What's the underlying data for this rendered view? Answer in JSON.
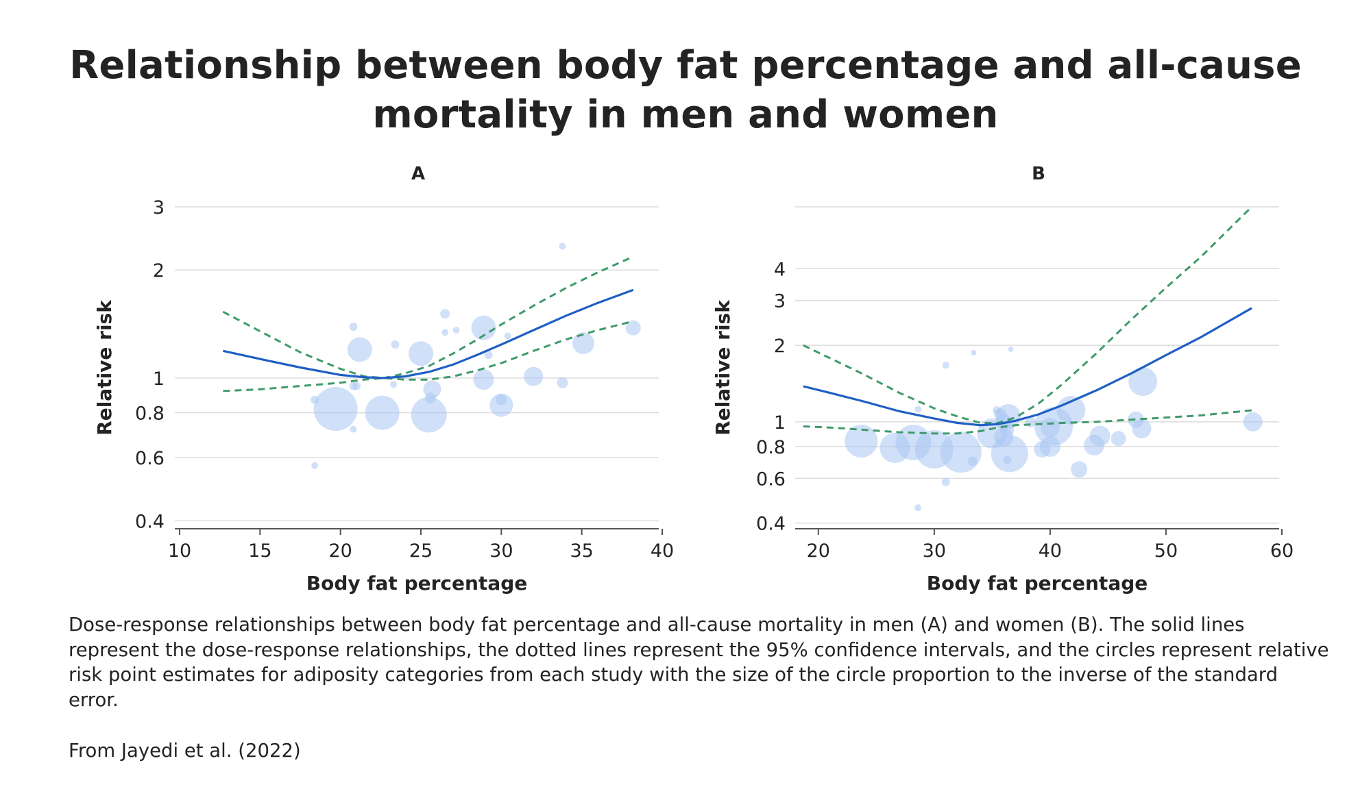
{
  "title": "Relationship between body fat percentage and all-cause mortality in men and women",
  "caption": "Dose-response relationships between body fat percentage and all-cause mortality in men (A) and women (B). The solid lines represent the dose-response relationships, the dotted lines represent the 95% confidence intervals, and the circles represent relative risk point estimates for adiposity categories from each study with the size of the circle proportion to the inverse of the standard error.",
  "source": "From Jayedi et al. (2022)",
  "colors": {
    "curve": "#1f5fc4",
    "ci": "#3f9a6a",
    "bubble": "#a9c6f2",
    "grid": "#dcdcdc",
    "axis": "#555555"
  },
  "chart_data": [
    {
      "type": "scatter",
      "panel_label": "A",
      "xlabel": "Body fat percentage",
      "ylabel": "Relative risk",
      "y_scale": "log",
      "xlim": [
        10,
        40
      ],
      "ylim": [
        0.38,
        3.0
      ],
      "x_ticks": [
        10,
        15,
        20,
        25,
        30,
        35,
        40
      ],
      "y_ticks": [
        0.4,
        0.6,
        0.8,
        1,
        2,
        3
      ],
      "y_tick_labels": [
        "0.4",
        "0.6",
        "0.8",
        "1",
        "2",
        "3"
      ],
      "curve": {
        "x": [
          12.7,
          15,
          17.5,
          20,
          21.5,
          22.7,
          24,
          25.5,
          27,
          28.5,
          30,
          32,
          34,
          36,
          38.2
        ],
        "y": [
          1.19,
          1.13,
          1.07,
          1.02,
          1.005,
          1.0,
          1.01,
          1.04,
          1.09,
          1.16,
          1.24,
          1.36,
          1.49,
          1.62,
          1.76
        ]
      },
      "ci_upper": {
        "x": [
          12.7,
          15,
          17.5,
          20,
          21.5,
          22.7,
          24,
          25.5,
          27,
          28.5,
          30,
          32,
          34,
          36,
          38.2
        ],
        "y": [
          1.53,
          1.35,
          1.18,
          1.06,
          1.01,
          1.0,
          1.03,
          1.08,
          1.17,
          1.28,
          1.41,
          1.59,
          1.78,
          1.97,
          2.18
        ]
      },
      "ci_lower": {
        "x": [
          12.7,
          15,
          17.5,
          20,
          21.5,
          22.7,
          24,
          25.5,
          27,
          28.5,
          30,
          32,
          34,
          36,
          38.2
        ],
        "y": [
          0.92,
          0.93,
          0.95,
          0.97,
          0.99,
          1.0,
          0.99,
          0.99,
          1.01,
          1.05,
          1.1,
          1.19,
          1.28,
          1.36,
          1.44
        ]
      },
      "points": [
        {
          "x": 18.4,
          "y": 0.57,
          "r": 5
        },
        {
          "x": 18.4,
          "y": 0.87,
          "r": 6
        },
        {
          "x": 19.7,
          "y": 0.82,
          "r": 32
        },
        {
          "x": 20.8,
          "y": 0.95,
          "r": 6
        },
        {
          "x": 21.0,
          "y": 0.95,
          "r": 6
        },
        {
          "x": 20.8,
          "y": 0.72,
          "r": 5
        },
        {
          "x": 20.8,
          "y": 1.39,
          "r": 6
        },
        {
          "x": 21.2,
          "y": 1.2,
          "r": 18
        },
        {
          "x": 22.6,
          "y": 0.8,
          "r": 25
        },
        {
          "x": 23.3,
          "y": 0.96,
          "r": 5
        },
        {
          "x": 23.4,
          "y": 1.24,
          "r": 6
        },
        {
          "x": 25.0,
          "y": 1.17,
          "r": 18
        },
        {
          "x": 25.5,
          "y": 0.79,
          "r": 26
        },
        {
          "x": 25.7,
          "y": 0.93,
          "r": 13
        },
        {
          "x": 25.6,
          "y": 0.88,
          "r": 8
        },
        {
          "x": 26.5,
          "y": 1.51,
          "r": 7
        },
        {
          "x": 26.5,
          "y": 1.34,
          "r": 5
        },
        {
          "x": 27.2,
          "y": 1.36,
          "r": 5
        },
        {
          "x": 28.9,
          "y": 1.38,
          "r": 18
        },
        {
          "x": 28.9,
          "y": 0.99,
          "r": 15
        },
        {
          "x": 29.2,
          "y": 1.16,
          "r": 6
        },
        {
          "x": 30.0,
          "y": 0.84,
          "r": 17
        },
        {
          "x": 30.0,
          "y": 0.87,
          "r": 8
        },
        {
          "x": 30.4,
          "y": 1.31,
          "r": 5
        },
        {
          "x": 32.0,
          "y": 1.01,
          "r": 14
        },
        {
          "x": 33.8,
          "y": 0.97,
          "r": 8
        },
        {
          "x": 33.8,
          "y": 2.33,
          "r": 5
        },
        {
          "x": 35.1,
          "y": 1.25,
          "r": 16
        },
        {
          "x": 38.2,
          "y": 1.38,
          "r": 11
        }
      ]
    },
    {
      "type": "scatter",
      "panel_label": "B",
      "xlabel": "Body fat percentage",
      "ylabel": "Relative risk",
      "y_scale": "log",
      "xlim": [
        18,
        60
      ],
      "ylim": [
        0.38,
        7.0
      ],
      "x_ticks": [
        20,
        30,
        40,
        50,
        60
      ],
      "y_ticks": [
        0.4,
        0.6,
        0.8,
        1,
        2,
        3,
        4
      ],
      "y_tick_labels": [
        "0.4",
        "0.6",
        "0.8",
        "1",
        "2",
        "3",
        "4"
      ],
      "extra_gridlines": [
        7.0
      ],
      "curve": {
        "x": [
          18.7,
          21,
          24,
          27,
          30,
          32,
          34,
          35.5,
          37,
          39,
          41,
          44,
          47,
          50,
          53,
          57.4
        ],
        "y": [
          1.38,
          1.3,
          1.2,
          1.1,
          1.03,
          0.99,
          0.97,
          0.98,
          1.01,
          1.07,
          1.16,
          1.33,
          1.55,
          1.83,
          2.15,
          2.8
        ]
      },
      "ci_upper": {
        "x": [
          18.7,
          21,
          24,
          27,
          30,
          32,
          34,
          35.5,
          37,
          39,
          41,
          44,
          47,
          50,
          53,
          57.4
        ],
        "y": [
          2.0,
          1.78,
          1.53,
          1.3,
          1.13,
          1.05,
          0.99,
          0.99,
          1.04,
          1.18,
          1.4,
          1.86,
          2.52,
          3.37,
          4.45,
          7.0
        ]
      },
      "ci_lower": {
        "x": [
          18.7,
          21,
          24,
          27,
          30,
          32,
          34,
          35.5,
          37,
          39,
          41,
          44,
          47,
          50,
          53,
          57.4
        ],
        "y": [
          0.96,
          0.95,
          0.93,
          0.91,
          0.9,
          0.9,
          0.92,
          0.95,
          0.97,
          0.98,
          0.99,
          1.0,
          1.02,
          1.04,
          1.06,
          1.11
        ]
      },
      "points": [
        {
          "x": 23.7,
          "y": 0.84,
          "r": 24
        },
        {
          "x": 26.6,
          "y": 0.79,
          "r": 22
        },
        {
          "x": 28.2,
          "y": 0.83,
          "r": 26
        },
        {
          "x": 28.6,
          "y": 0.46,
          "r": 5
        },
        {
          "x": 28.6,
          "y": 1.12,
          "r": 5
        },
        {
          "x": 30.0,
          "y": 0.78,
          "r": 28
        },
        {
          "x": 31.0,
          "y": 0.58,
          "r": 6
        },
        {
          "x": 31.0,
          "y": 1.67,
          "r": 5
        },
        {
          "x": 32.3,
          "y": 0.76,
          "r": 30
        },
        {
          "x": 33.3,
          "y": 0.7,
          "r": 7
        },
        {
          "x": 33.4,
          "y": 1.87,
          "r": 4
        },
        {
          "x": 35.0,
          "y": 0.9,
          "r": 22
        },
        {
          "x": 35.4,
          "y": 1.11,
          "r": 6
        },
        {
          "x": 35.7,
          "y": 1.07,
          "r": 9
        },
        {
          "x": 36.0,
          "y": 1.0,
          "r": 12
        },
        {
          "x": 36.0,
          "y": 0.87,
          "r": 14
        },
        {
          "x": 36.3,
          "y": 0.93,
          "r": 10
        },
        {
          "x": 36.4,
          "y": 1.05,
          "r": 18
        },
        {
          "x": 36.5,
          "y": 0.75,
          "r": 27
        },
        {
          "x": 36.3,
          "y": 0.71,
          "r": 6
        },
        {
          "x": 36.6,
          "y": 1.93,
          "r": 4
        },
        {
          "x": 38.3,
          "y": 1.0,
          "r": 8
        },
        {
          "x": 39.3,
          "y": 0.78,
          "r": 12
        },
        {
          "x": 40.0,
          "y": 0.8,
          "r": 15
        },
        {
          "x": 40.0,
          "y": 0.95,
          "r": 14
        },
        {
          "x": 40.3,
          "y": 0.96,
          "r": 28
        },
        {
          "x": 41.8,
          "y": 1.11,
          "r": 21
        },
        {
          "x": 42.5,
          "y": 0.65,
          "r": 12
        },
        {
          "x": 43.8,
          "y": 0.81,
          "r": 15
        },
        {
          "x": 44.3,
          "y": 0.88,
          "r": 15
        },
        {
          "x": 45.9,
          "y": 0.86,
          "r": 11
        },
        {
          "x": 47.4,
          "y": 1.02,
          "r": 12
        },
        {
          "x": 47.9,
          "y": 0.94,
          "r": 14
        },
        {
          "x": 48.0,
          "y": 1.44,
          "r": 21
        },
        {
          "x": 57.5,
          "y": 1.0,
          "r": 14
        }
      ]
    }
  ]
}
